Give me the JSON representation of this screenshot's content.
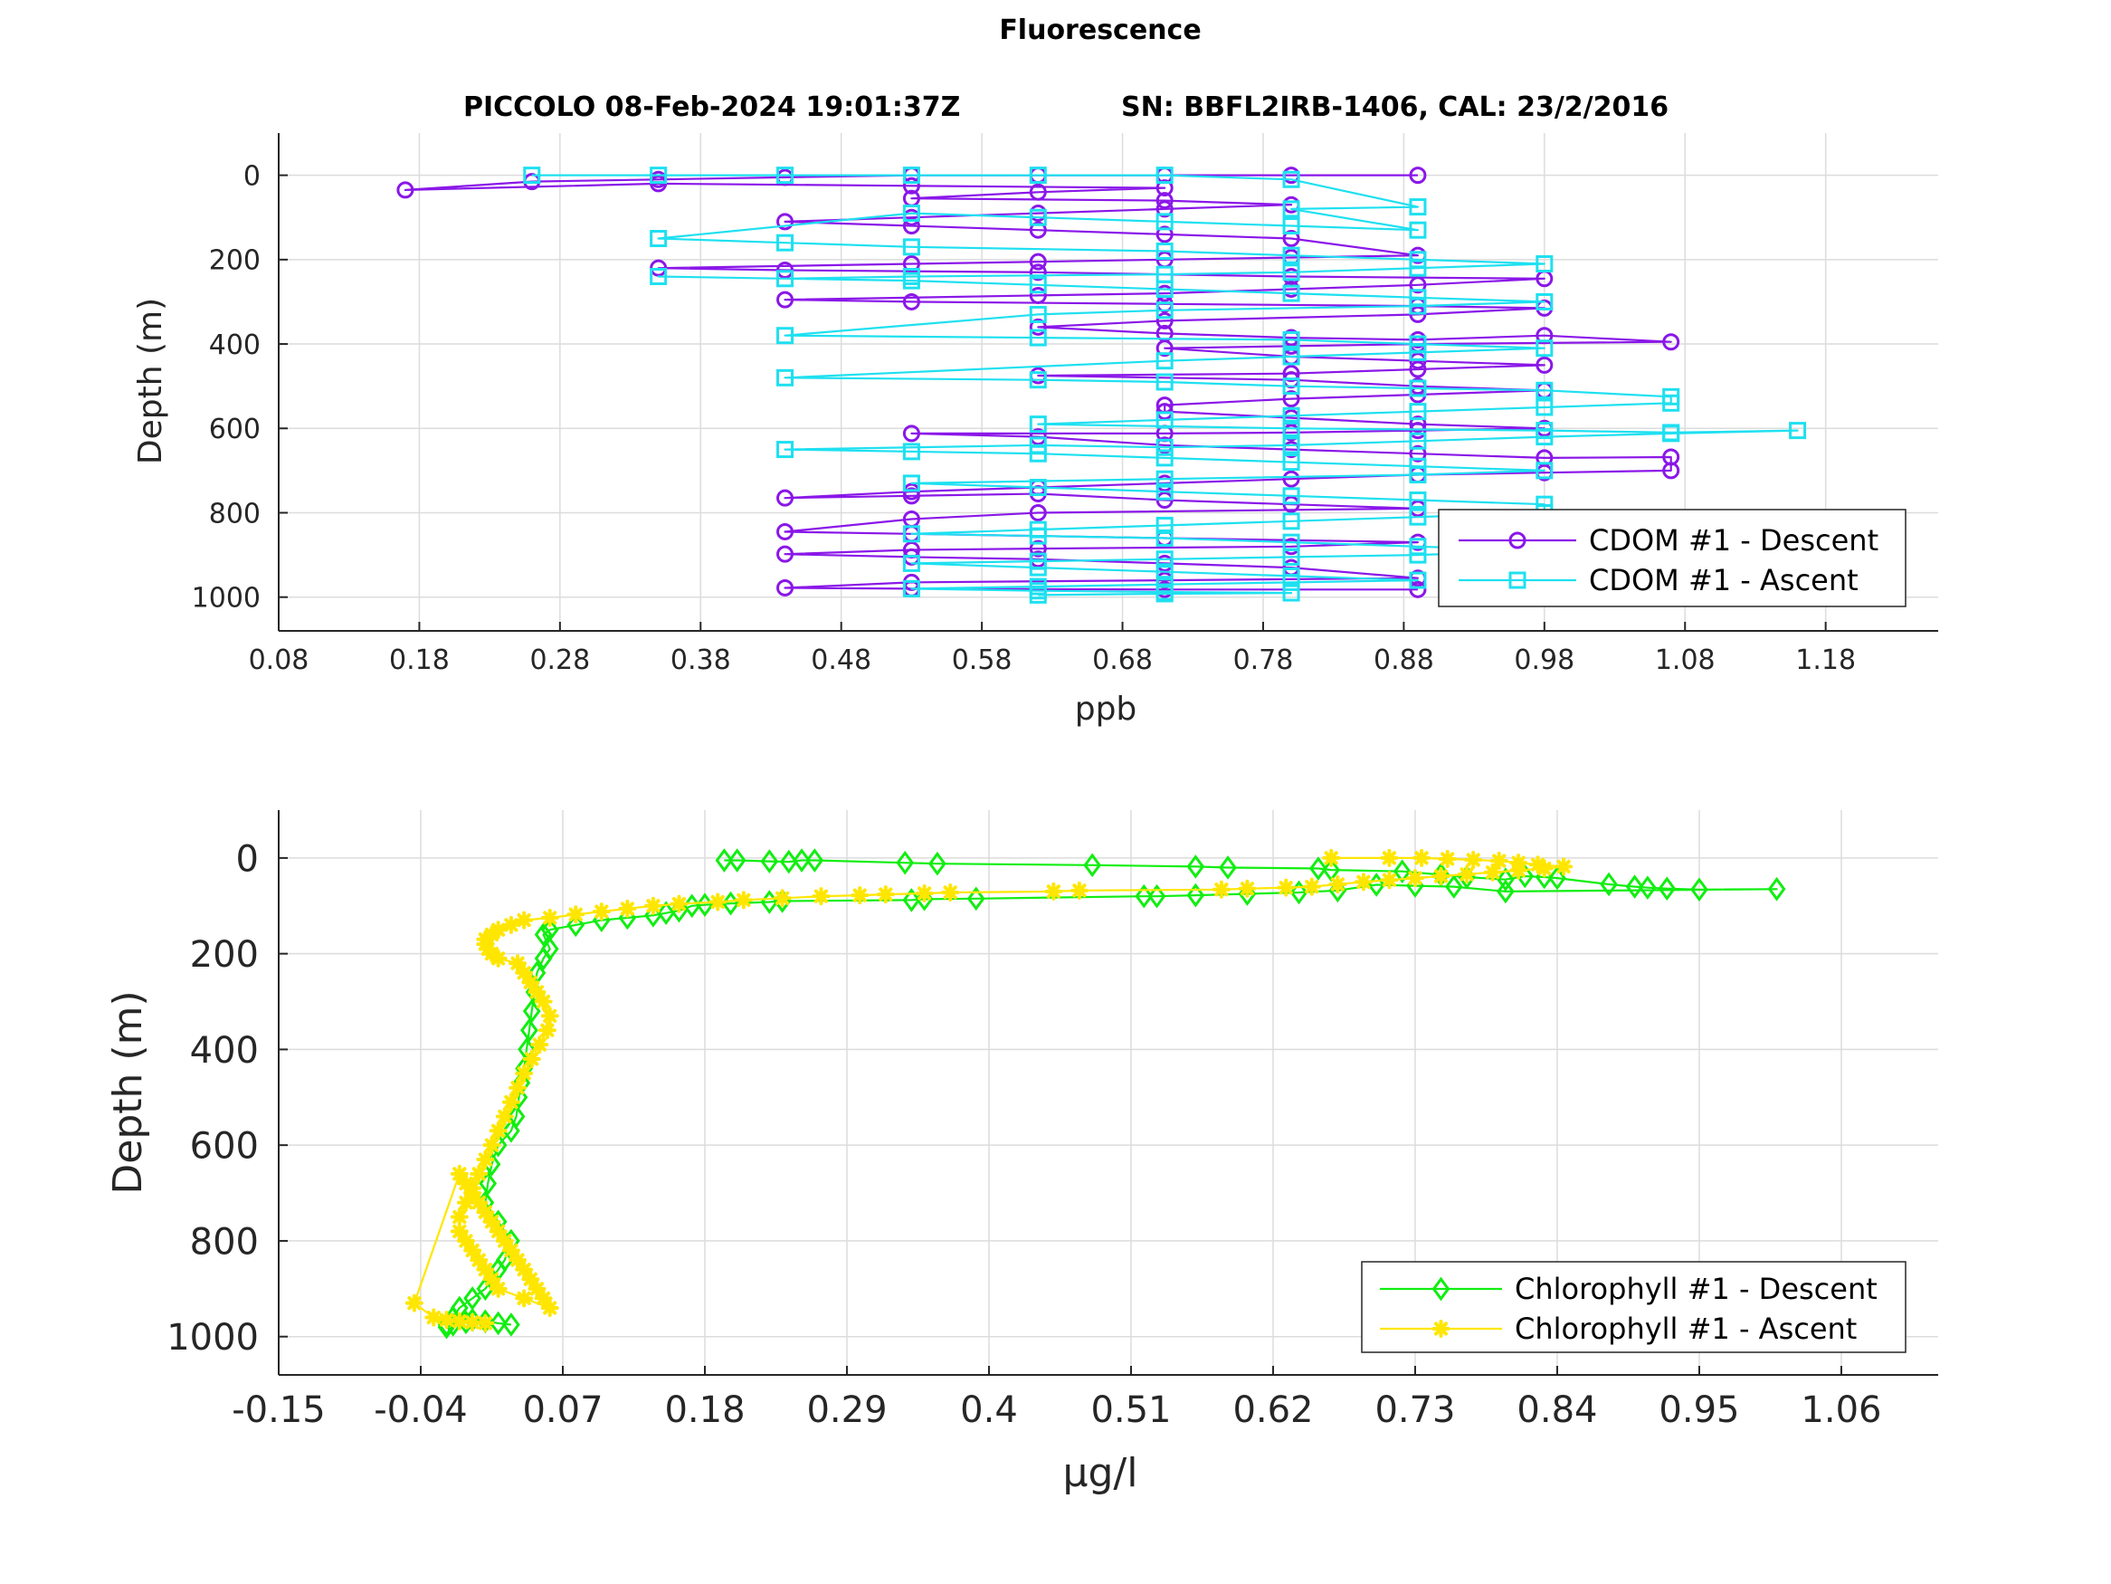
{
  "figure": {
    "title": "Fluorescence",
    "subtitle_left": "PICCOLO 08-Feb-2024 19:01:37Z",
    "subtitle_right": "SN: BBFL2IRB-1406, CAL: 23/2/2016"
  },
  "colors": {
    "cdom_descent": "#8a17e8",
    "cdom_ascent": "#1ee0f0",
    "chl_descent": "#11ee11",
    "chl_ascent": "#ffe600",
    "grid": "#dcdcdc",
    "axis": "#262626"
  },
  "chart_data": [
    {
      "type": "line",
      "title": "",
      "xlabel": "ppb",
      "ylabel": "Depth (m)",
      "xlim": [
        0.08,
        1.26
      ],
      "ylim": [
        1080,
        -100
      ],
      "y_reversed": true,
      "grid": true,
      "xticks": [
        0.08,
        0.18,
        0.28,
        0.38,
        0.48,
        0.58,
        0.68,
        0.78,
        0.88,
        0.98,
        1.08,
        1.18
      ],
      "xtick_labels": [
        "0.08",
        "0.18",
        "0.28",
        "0.38",
        "0.48",
        "0.58",
        "0.68",
        "0.78",
        "0.88",
        "0.98",
        "1.08",
        "1.18"
      ],
      "yticks": [
        0,
        200,
        400,
        600,
        800,
        1000
      ],
      "ytick_labels": [
        "0",
        "200",
        "400",
        "600",
        "800",
        "1000"
      ],
      "legend_position": "bottom-right",
      "series": [
        {
          "name": "CDOM #1 - Descent",
          "marker": "circle",
          "x": [
            0.89,
            0.8,
            0.71,
            0.62,
            0.53,
            0.44,
            0.35,
            0.26,
            0.17,
            0.35,
            0.53,
            0.71,
            0.62,
            0.53,
            0.71,
            0.8,
            0.71,
            0.62,
            0.53,
            0.44,
            0.53,
            0.62,
            0.71,
            0.8,
            0.89,
            0.8,
            0.71,
            0.62,
            0.53,
            0.35,
            0.44,
            0.62,
            0.8,
            0.98,
            0.89,
            0.8,
            0.71,
            0.62,
            0.44,
            0.53,
            0.71,
            0.89,
            0.98,
            0.89,
            0.71,
            0.62,
            0.71,
            0.8,
            0.89,
            0.98,
            1.07,
            0.89,
            0.8,
            0.71,
            0.8,
            0.89,
            0.98,
            0.89,
            0.8,
            0.62,
            0.8,
            0.89,
            0.98,
            0.89,
            0.8,
            0.71,
            0.71,
            0.8,
            0.89,
            0.98,
            0.89,
            0.8,
            0.71,
            0.53,
            0.62,
            0.71,
            0.8,
            0.89,
            0.98,
            1.07,
            1.07,
            0.98,
            0.89,
            0.8,
            0.71,
            0.62,
            0.53,
            0.44,
            0.53,
            0.62,
            0.71,
            0.8,
            0.89,
            0.62,
            0.53,
            0.44,
            0.53,
            0.71,
            0.89,
            0.8,
            0.62,
            0.53,
            0.44,
            0.53,
            0.62,
            0.71,
            0.8,
            0.89,
            0.71,
            0.53,
            0.44,
            0.53,
            0.71,
            0.89
          ],
          "y": [
            0,
            0,
            0,
            0,
            0,
            5,
            10,
            15,
            35,
            20,
            25,
            30,
            40,
            55,
            60,
            70,
            80,
            90,
            100,
            110,
            120,
            130,
            140,
            150,
            190,
            195,
            200,
            205,
            210,
            220,
            225,
            230,
            240,
            245,
            260,
            270,
            280,
            285,
            295,
            300,
            305,
            310,
            315,
            330,
            345,
            360,
            375,
            385,
            390,
            380,
            395,
            400,
            405,
            410,
            430,
            440,
            450,
            460,
            470,
            475,
            485,
            500,
            510,
            520,
            530,
            545,
            560,
            575,
            590,
            600,
            605,
            610,
            612,
            612,
            620,
            640,
            650,
            660,
            670,
            668,
            700,
            705,
            710,
            720,
            730,
            740,
            750,
            765,
            760,
            755,
            770,
            780,
            790,
            800,
            815,
            845,
            850,
            860,
            870,
            880,
            885,
            888,
            898,
            905,
            910,
            920,
            930,
            955,
            960,
            965,
            978,
            980,
            982,
            982
          ]
        },
        {
          "name": "CDOM #1 - Ascent",
          "marker": "square",
          "x": [
            0.26,
            0.35,
            0.44,
            0.53,
            0.62,
            0.71,
            0.8,
            0.89,
            0.8,
            0.89,
            0.8,
            0.71,
            0.62,
            0.53,
            0.35,
            0.44,
            0.53,
            0.71,
            0.8,
            0.89,
            0.98,
            0.89,
            0.8,
            0.71,
            0.53,
            0.44,
            0.35,
            0.53,
            0.62,
            0.71,
            0.8,
            0.89,
            0.98,
            0.89,
            0.71,
            0.62,
            0.44,
            0.62,
            0.8,
            0.89,
            0.98,
            0.89,
            0.8,
            0.71,
            0.44,
            0.62,
            0.71,
            0.8,
            0.89,
            0.98,
            1.07,
            1.07,
            0.98,
            0.89,
            0.8,
            0.71,
            0.62,
            0.8,
            0.98,
            1.07,
            1.16,
            1.07,
            0.98,
            0.89,
            0.8,
            0.71,
            0.62,
            0.44,
            0.53,
            0.62,
            0.71,
            0.8,
            0.89,
            0.98,
            0.89,
            0.71,
            0.53,
            0.62,
            0.71,
            0.8,
            0.89,
            0.98,
            0.98,
            0.89,
            0.8,
            0.71,
            0.62,
            0.53,
            0.62,
            0.71,
            0.8,
            0.89,
            0.98,
            0.89,
            0.8,
            0.71,
            0.62,
            0.53,
            0.62,
            0.71,
            0.8,
            0.89,
            0.8,
            0.71,
            0.62,
            0.53,
            0.62,
            0.71,
            0.8,
            0.71,
            0.62
          ],
          "y": [
            0,
            0,
            0,
            0,
            0,
            0,
            10,
            75,
            80,
            130,
            120,
            110,
            100,
            90,
            150,
            160,
            170,
            180,
            190,
            200,
            210,
            220,
            230,
            235,
            240,
            245,
            240,
            250,
            260,
            270,
            280,
            290,
            300,
            310,
            320,
            330,
            380,
            385,
            390,
            400,
            410,
            420,
            430,
            440,
            480,
            485,
            490,
            500,
            505,
            510,
            525,
            540,
            550,
            560,
            570,
            580,
            590,
            600,
            605,
            610,
            605,
            612,
            620,
            630,
            640,
            645,
            640,
            650,
            655,
            660,
            670,
            680,
            690,
            700,
            710,
            720,
            730,
            740,
            750,
            760,
            770,
            780,
            800,
            810,
            820,
            830,
            840,
            850,
            855,
            860,
            870,
            880,
            890,
            900,
            905,
            910,
            915,
            920,
            930,
            940,
            950,
            960,
            965,
            970,
            975,
            980,
            985,
            988,
            990,
            992,
            995
          ]
        }
      ]
    },
    {
      "type": "line",
      "title": "",
      "xlabel": "µg/l",
      "ylabel": "Depth (m)",
      "xlim": [
        -0.15,
        1.135
      ],
      "ylim": [
        1080,
        -100
      ],
      "y_reversed": true,
      "grid": true,
      "xticks": [
        -0.15,
        -0.04,
        0.07,
        0.18,
        0.29,
        0.4,
        0.51,
        0.62,
        0.73,
        0.84,
        0.95,
        1.06
      ],
      "xtick_labels": [
        "-0.15",
        "-0.04",
        "0.07",
        "0.18",
        "0.29",
        "0.4",
        "0.51",
        "0.62",
        "0.73",
        "0.84",
        "0.95",
        "1.06"
      ],
      "yticks": [
        0,
        200,
        400,
        600,
        800,
        1000
      ],
      "ytick_labels": [
        "0",
        "200",
        "400",
        "600",
        "800",
        "1000"
      ],
      "legend_position": "bottom-right",
      "series": [
        {
          "name": "Chlorophyll #1 - Descent",
          "marker": "diamond",
          "x": [
            0.195,
            0.205,
            0.23,
            0.245,
            0.255,
            0.265,
            0.335,
            0.36,
            0.48,
            0.56,
            0.585,
            0.655,
            0.665,
            0.72,
            0.75,
            0.77,
            0.8,
            0.815,
            0.83,
            0.84,
            0.88,
            0.9,
            0.91,
            0.925,
            0.95,
            1.01,
            0.8,
            0.76,
            0.73,
            0.7,
            0.67,
            0.64,
            0.6,
            0.56,
            0.53,
            0.52,
            0.39,
            0.35,
            0.34,
            0.24,
            0.23,
            0.2,
            0.18,
            0.17,
            0.16,
            0.15,
            0.14,
            0.12,
            0.1,
            0.08,
            0.06,
            0.055,
            0.06,
            0.055,
            0.05,
            0.048,
            0.046,
            0.044,
            0.042,
            0.04,
            0.038,
            0.036,
            0.034,
            0.03,
            0.02,
            0.015,
            0.012,
            0.01,
            0.02,
            0.03,
            0.025,
            0.02,
            0.015,
            0.01,
            0.0,
            -0.01,
            -0.015,
            -0.02,
            -0.02,
            -0.015,
            -0.005,
            0.0,
            0.01,
            0.02,
            0.03
          ],
          "y": [
            5,
            5,
            7,
            8,
            5,
            5,
            10,
            12,
            15,
            18,
            20,
            22,
            25,
            28,
            35,
            40,
            45,
            38,
            40,
            42,
            55,
            60,
            62,
            64,
            66,
            65,
            70,
            60,
            58,
            56,
            68,
            72,
            75,
            78,
            80,
            80,
            85,
            86,
            88,
            90,
            92,
            95,
            98,
            100,
            110,
            115,
            120,
            125,
            130,
            140,
            150,
            160,
            190,
            210,
            240,
            280,
            320,
            360,
            400,
            440,
            470,
            500,
            540,
            570,
            600,
            640,
            680,
            720,
            760,
            800,
            840,
            860,
            880,
            900,
            920,
            940,
            960,
            975,
            980,
            975,
            970,
            965,
            968,
            972,
            975
          ]
        },
        {
          "name": "Chlorophyll #1 - Ascent",
          "marker": "asterisk",
          "x": [
            0.665,
            0.71,
            0.735,
            0.755,
            0.775,
            0.795,
            0.81,
            0.825,
            0.845,
            0.83,
            0.81,
            0.79,
            0.77,
            0.75,
            0.73,
            0.71,
            0.69,
            0.67,
            0.65,
            0.63,
            0.6,
            0.58,
            0.47,
            0.45,
            0.37,
            0.35,
            0.32,
            0.3,
            0.27,
            0.24,
            0.21,
            0.19,
            0.16,
            0.14,
            0.12,
            0.1,
            0.08,
            0.06,
            0.04,
            0.03,
            0.02,
            0.015,
            0.01,
            0.01,
            0.012,
            0.015,
            0.02,
            0.035,
            0.04,
            0.045,
            0.05,
            0.055,
            0.06,
            0.058,
            0.052,
            0.046,
            0.04,
            0.035,
            0.03,
            0.025,
            0.02,
            0.015,
            0.01,
            0.005,
            0.0,
            -0.005,
            -0.01,
            -0.01,
            -0.005,
            0.0,
            0.005,
            0.01,
            0.015,
            0.02,
            0.04,
            0.06,
            0.055,
            0.05,
            0.045,
            0.04,
            0.035,
            0.03,
            0.025,
            0.02,
            0.015,
            0.01,
            0.005,
            0.0,
            -0.005,
            -0.01,
            -0.045,
            -0.03,
            -0.02,
            -0.01,
            0.0,
            0.01
          ],
          "y": [
            0,
            0,
            0,
            2,
            4,
            6,
            10,
            14,
            18,
            22,
            26,
            30,
            34,
            38,
            42,
            46,
            50,
            55,
            60,
            62,
            64,
            66,
            68,
            70,
            72,
            74,
            76,
            78,
            80,
            84,
            88,
            92,
            96,
            100,
            106,
            112,
            118,
            125,
            130,
            140,
            150,
            160,
            170,
            180,
            190,
            200,
            210,
            220,
            240,
            260,
            280,
            300,
            330,
            360,
            390,
            420,
            450,
            480,
            510,
            540,
            570,
            600,
            630,
            660,
            690,
            720,
            750,
            780,
            800,
            820,
            840,
            860,
            880,
            900,
            920,
            940,
            920,
            900,
            880,
            860,
            840,
            820,
            800,
            780,
            760,
            740,
            720,
            700,
            680,
            660,
            930,
            960,
            965,
            968,
            970,
            972
          ]
        }
      ]
    }
  ]
}
